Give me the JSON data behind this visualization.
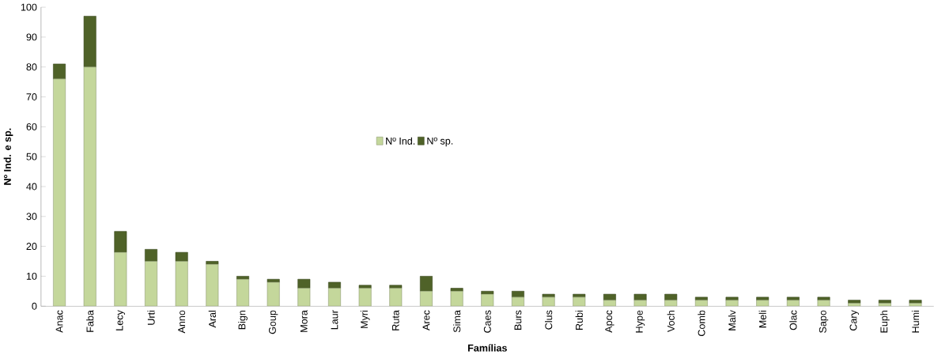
{
  "chart_data": {
    "type": "bar",
    "stacked": true,
    "xlabel": "Famílias",
    "ylabel": "Nº Ind. e sp.",
    "categories": [
      "Anac",
      "Faba",
      "Lecy",
      "Urti",
      "Anno",
      "Aral",
      "Bign",
      "Goup",
      "Mora",
      "Laur",
      "Myri",
      "Ruta",
      "Arec",
      "Sima",
      "Caes",
      "Burs",
      "Clus",
      "Rubi",
      "Apoc",
      "Hype",
      "Voch",
      "Comb",
      "Malv",
      "Meli",
      "Olac",
      "Sapo",
      "Cary",
      "Euph",
      "Humi"
    ],
    "series": [
      {
        "name": "Nº Ind.",
        "color": "#c4d79b",
        "values": [
          76,
          80,
          18,
          15,
          15,
          14,
          9,
          8,
          6,
          6,
          6,
          6,
          5,
          5,
          4,
          3,
          3,
          3,
          2,
          2,
          2,
          2,
          2,
          2,
          2,
          2,
          1,
          1,
          1
        ]
      },
      {
        "name": "Nº sp.",
        "color": "#4f6228",
        "values": [
          5,
          17,
          7,
          4,
          3,
          1,
          1,
          1,
          3,
          2,
          1,
          1,
          5,
          1,
          1,
          2,
          1,
          1,
          2,
          2,
          2,
          1,
          1,
          1,
          1,
          1,
          1,
          1,
          1
        ]
      }
    ],
    "ylim": [
      0,
      100
    ],
    "yticks": [
      0,
      10,
      20,
      30,
      40,
      50,
      60,
      70,
      80,
      90,
      100
    ],
    "grid": false,
    "legend": "center"
  }
}
